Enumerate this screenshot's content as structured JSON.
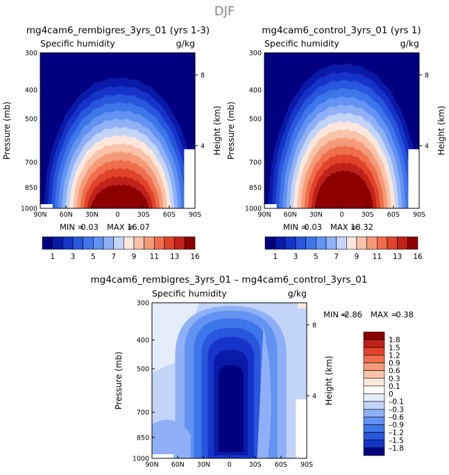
{
  "chart_data": {
    "type": "contour",
    "title": "DJF",
    "panels": [
      {
        "title": "mg4cam6_rembigres_3yrs_01 (yrs 1-3)",
        "variable": "Specific humidity",
        "units": "g/kg",
        "ylabel": "Pressure (mb)",
        "y2label": "Height (km)",
        "x_ticks": [
          "90N",
          "60N",
          "30N",
          "0",
          "30S",
          "60S",
          "90S"
        ],
        "y_ticks": [
          "300",
          "400",
          "500",
          "700",
          "850",
          "1000"
        ],
        "y2_ticks": [
          "8",
          "4"
        ],
        "min_label": "MIN =",
        "min": "0.03",
        "max_label": "MAX =",
        "max": "16.07",
        "levels": [
          1,
          2,
          3,
          4,
          5,
          6,
          7,
          8,
          9,
          10,
          11,
          12,
          13,
          14,
          16
        ]
      },
      {
        "title": "mg4cam6_control_3yrs_01 (yrs 1)",
        "variable": "Specific humidity",
        "units": "g/kg",
        "ylabel": "Pressure (mb)",
        "y2label": "Height (km)",
        "x_ticks": [
          "90N",
          "60N",
          "30N",
          "0",
          "30S",
          "60S",
          "90S"
        ],
        "y_ticks": [
          "300",
          "400",
          "500",
          "700",
          "850",
          "1000"
        ],
        "y2_ticks": [
          "8",
          "4"
        ],
        "min_label": "MIN =",
        "min": "0.03",
        "max_label": "MAX =",
        "max": "18.32",
        "levels": [
          1,
          2,
          3,
          4,
          5,
          6,
          7,
          8,
          9,
          10,
          11,
          12,
          13,
          14,
          16
        ]
      },
      {
        "title": "mg4cam6_rembigres_3yrs_01 – mg4cam6_control_3yrs_01",
        "variable": "Specific humidity",
        "units": "g/kg",
        "ylabel": "Pressure (mb)",
        "y2label": "Height (km)",
        "x_ticks": [
          "90N",
          "60N",
          "30N",
          "0",
          "30S",
          "60S",
          "90S"
        ],
        "y_ticks": [
          "300",
          "400",
          "500",
          "700",
          "850",
          "1000"
        ],
        "y2_ticks": [
          "8",
          "4"
        ],
        "min_label": "MIN =",
        "min": "–2.86",
        "max_label": "MAX =",
        "max": "0.38",
        "levels": [
          -1.8,
          -1.5,
          -1.2,
          -0.9,
          -0.6,
          -0.3,
          -0.1,
          0,
          0.1,
          0.3,
          0.6,
          0.9,
          1.2,
          1.5,
          1.8
        ]
      }
    ],
    "colorbar_top": {
      "labels": [
        "1",
        "3",
        "5",
        "7",
        "9",
        "11",
        "13",
        "16"
      ],
      "colors": [
        "#000080",
        "#0a1aa8",
        "#1634c8",
        "#2856dc",
        "#3f75ea",
        "#6292f2",
        "#8fb0f6",
        "#c2d4f8",
        "#fde7dc",
        "#f8c3a8",
        "#f59a79",
        "#ef6e4d",
        "#e0432a",
        "#c0211a",
        "#8c0000"
      ]
    },
    "colorbar_diff": {
      "labels": [
        "1.8",
        "1.5",
        "1.2",
        "0.9",
        "0.6",
        "0.3",
        "0.1",
        "0",
        "–0.1",
        "–0.3",
        "–0.6",
        "–0.9",
        "–1.2",
        "–1.5",
        "–1.8"
      ],
      "colors": [
        "#8c0000",
        "#c0211a",
        "#e0432a",
        "#ef6e4d",
        "#f59a79",
        "#f8c3a8",
        "#fde7dc",
        "#ffffff",
        "#e4eefa",
        "#c2d4f8",
        "#8fb0f6",
        "#6292f2",
        "#3f75ea",
        "#2856dc",
        "#1634c8",
        "#000080"
      ]
    }
  }
}
